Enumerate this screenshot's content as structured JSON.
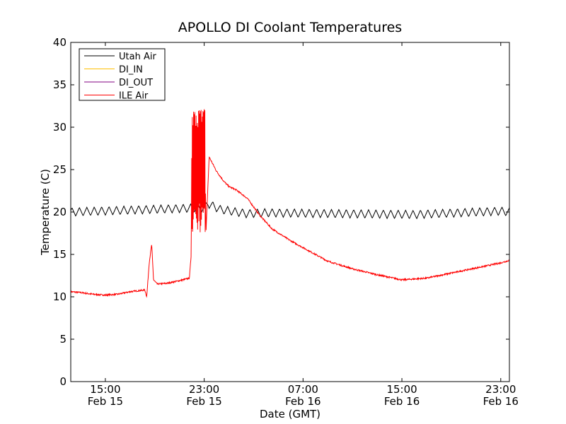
{
  "chart_data": {
    "type": "line",
    "title": "APOLLO DI Coolant Temperatures",
    "xlabel": "Date (GMT)",
    "ylabel": "Temperature (C)",
    "ylim": [
      0,
      40
    ],
    "yticks": [
      0,
      5,
      10,
      15,
      20,
      25,
      30,
      35,
      40
    ],
    "x_units": "hours since Feb 15 00:00 GMT",
    "xlim": [
      12.2,
      47.7
    ],
    "xticks": [
      {
        "x": 15,
        "time": "15:00",
        "date": "Feb 15"
      },
      {
        "x": 23,
        "time": "23:00",
        "date": "Feb 15"
      },
      {
        "x": 31,
        "time": "07:00",
        "date": "Feb 16"
      },
      {
        "x": 39,
        "time": "15:00",
        "date": "Feb 16"
      },
      {
        "x": 47,
        "time": "23:00",
        "date": "Feb 16"
      }
    ],
    "legend_position": "top-left",
    "series": [
      {
        "name": "Utah Air",
        "color": "#000000",
        "x": [
          12.2,
          23.0,
          23.3,
          24.3,
          25.6,
          26.5,
          28.0,
          40.0,
          47.0,
          47.7
        ],
        "y": [
          20.0,
          20.5,
          21.0,
          20.3,
          20.0,
          19.8,
          19.9,
          19.7,
          20.1,
          20.0
        ],
        "oscillation": {
          "amplitude": 0.5,
          "period_hours": 0.6
        }
      },
      {
        "name": "DI_IN",
        "color": "#ffbf00",
        "x": [],
        "y": []
      },
      {
        "name": "DI_OUT",
        "color": "#800080",
        "x": [],
        "y": []
      },
      {
        "name": "ILE Air",
        "color": "#ff0000",
        "x": [
          12.2,
          13.0,
          14.0,
          15.0,
          16.0,
          17.0,
          18.2,
          18.35,
          18.55,
          18.75,
          18.9,
          19.2,
          20.0,
          21.0,
          21.8,
          21.95,
          22.0,
          22.1,
          22.3,
          22.5,
          22.7,
          22.85,
          23.0,
          23.15,
          23.4,
          24.0,
          24.6,
          25.0,
          25.6,
          26.5,
          27.5,
          28.5,
          30.0,
          31.5,
          33.0,
          35.0,
          37.0,
          39.0,
          41.0,
          43.0,
          45.0,
          47.0,
          47.7
        ],
        "y": [
          10.6,
          10.5,
          10.3,
          10.2,
          10.3,
          10.6,
          10.8,
          10.0,
          14.0,
          16.2,
          12.0,
          11.5,
          11.6,
          11.9,
          12.2,
          15.0,
          30.0,
          18.5,
          32.4,
          18.0,
          32.0,
          17.5,
          32.1,
          17.8,
          26.5,
          24.8,
          23.6,
          23.0,
          22.6,
          21.6,
          19.6,
          18.0,
          16.6,
          15.4,
          14.2,
          13.3,
          12.6,
          12.0,
          12.2,
          12.8,
          13.4,
          14.0,
          14.3
        ],
        "spike_window": [
          22.0,
          23.1
        ]
      }
    ]
  }
}
